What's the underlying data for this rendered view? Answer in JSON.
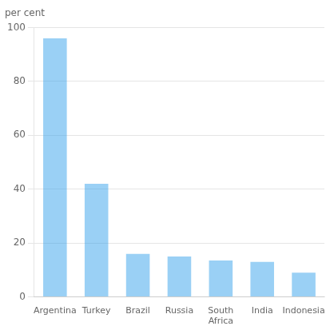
{
  "chart_data": {
    "type": "bar",
    "ylabel": "per cent",
    "categories": [
      "Argentina",
      "Turkey",
      "Brazil",
      "Russia",
      "South\nAfrica",
      "India",
      "Indonesia"
    ],
    "values": [
      96,
      42,
      16,
      15,
      13.5,
      13,
      9
    ],
    "ylim": [
      0,
      100
    ],
    "yticks": [
      0,
      20,
      40,
      60,
      80,
      100
    ],
    "grid": true
  }
}
